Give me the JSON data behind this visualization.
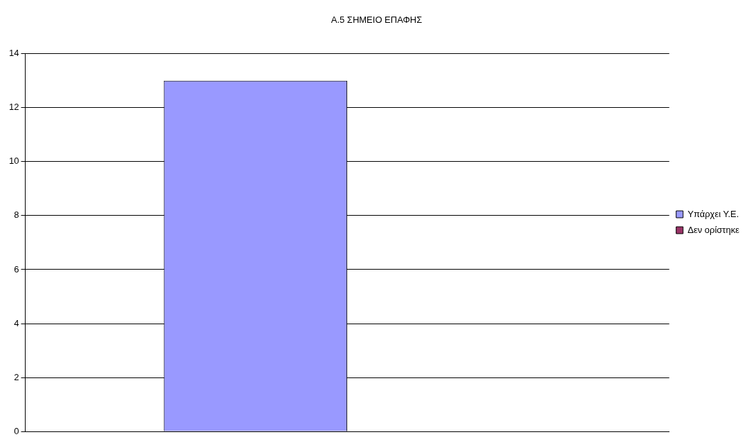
{
  "chart_data": {
    "type": "bar",
    "title": "Α.5 ΣΗΜΕΙΟ ΕΠΑΦΗΣ",
    "categories": [
      null
    ],
    "series": [
      {
        "name": "Υπάρχει Υ.Ε.",
        "color": "#9999ff",
        "values": [
          13
        ]
      },
      {
        "name": "Δεν ορίστηκε",
        "color": "#993366",
        "values": [
          0
        ]
      }
    ],
    "ylim": [
      0,
      14
    ],
    "yticks": [
      0,
      2,
      4,
      6,
      8,
      10,
      12,
      14
    ],
    "grid": "y",
    "legend": "right"
  }
}
